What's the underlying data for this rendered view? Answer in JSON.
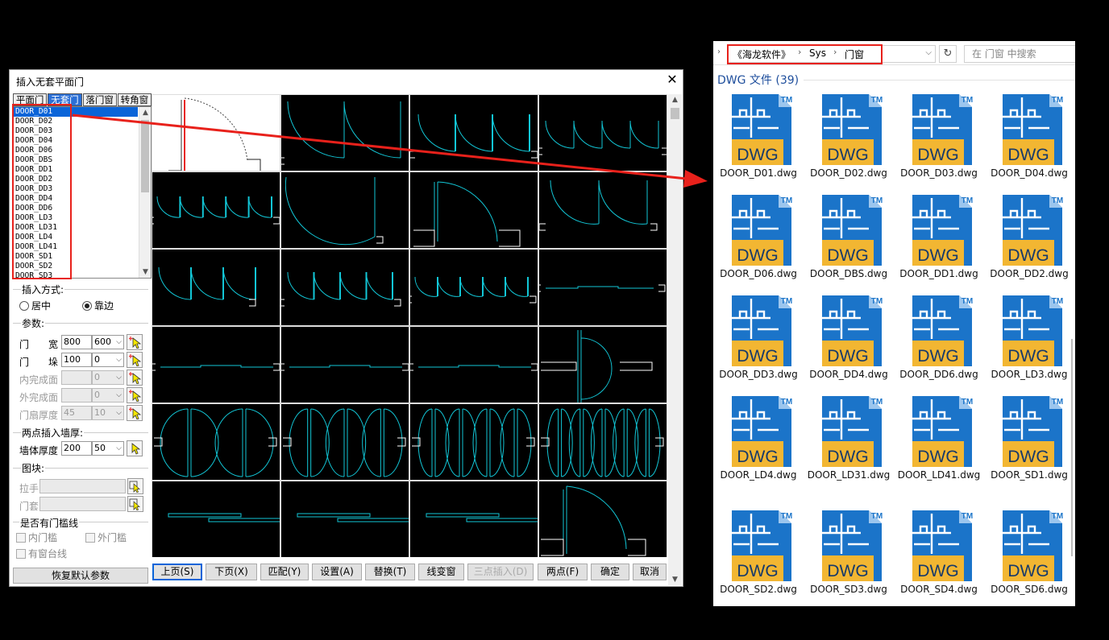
{
  "dialog": {
    "title": "插入无套平面门",
    "close_glyph": "✕",
    "tabs": [
      {
        "label": "平面门",
        "active": false
      },
      {
        "label": "无套门",
        "active": true
      },
      {
        "label": "落门窗",
        "active": false
      },
      {
        "label": "转角窗",
        "active": false
      }
    ],
    "door_list": [
      "DOOR_D01",
      "DOOR_D02",
      "DOOR_D03",
      "DOOR_D04",
      "DOOR_D06",
      "DOOR_DBS",
      "DOOR_DD1",
      "DOOR_DD2",
      "DOOR_DD3",
      "DOOR_DD4",
      "DOOR_DD6",
      "DOOR_LD3",
      "DOOR_LD31",
      "DOOR_LD4",
      "DOOR_LD41",
      "DOOR_SD1",
      "DOOR_SD2",
      "DOOR_SD3"
    ],
    "selected_door": "DOOR_D01",
    "insert_mode": {
      "title": "插入方式:",
      "options": [
        {
          "label": "居中",
          "checked": false
        },
        {
          "label": "靠边",
          "checked": true
        }
      ]
    },
    "params": {
      "title": "参数:",
      "rows": [
        {
          "label": "门　　宽",
          "value": "800",
          "combo": "600",
          "disabled": false
        },
        {
          "label": "门　　垛",
          "value": "100",
          "combo": "0",
          "disabled": false
        },
        {
          "label": "内完成面",
          "value": "",
          "combo": "0",
          "disabled": true
        },
        {
          "label": "外完成面",
          "value": "",
          "combo": "0",
          "disabled": true
        },
        {
          "label": "门扇厚度",
          "value": "45",
          "combo": "10",
          "disabled": true
        }
      ]
    },
    "two_point": {
      "title": "两点插入墙厚:",
      "label": "墙体厚度",
      "value": "200",
      "combo": "50"
    },
    "block": {
      "title": "图块:",
      "handle_label": "拉手",
      "cover_label": "门套"
    },
    "threshold": {
      "title": "是否有门槛线",
      "inner": "内门槛",
      "outer": "外门槛",
      "sill": "有窗台线"
    },
    "reset_button": "恢复默认参数",
    "buttons": [
      {
        "label": "上页(S)",
        "focus": true,
        "disabled": false
      },
      {
        "label": "下页(X)",
        "focus": false,
        "disabled": false
      },
      {
        "label": "匹配(Y)",
        "focus": false,
        "disabled": false
      },
      {
        "label": "设置(A)",
        "focus": false,
        "disabled": false
      },
      {
        "label": "替换(T)",
        "focus": false,
        "disabled": false
      },
      {
        "label": "线变窗",
        "focus": false,
        "disabled": false
      },
      {
        "label": "三点插入(D)",
        "focus": false,
        "disabled": true
      },
      {
        "label": "两点(F)",
        "focus": false,
        "disabled": false
      },
      {
        "label": "确定",
        "focus": false,
        "disabled": false
      },
      {
        "label": "取消",
        "focus": false,
        "disabled": false
      }
    ]
  },
  "explorer": {
    "breadcrumb": [
      "《海龙软件》",
      "Sys",
      "门窗"
    ],
    "search_placeholder": "在 门窗 中搜索",
    "group_header": "DWG 文件 (39)",
    "icon_text": "DWG",
    "icon_tm": "TM",
    "files": [
      "DOOR_D01.dwg",
      "DOOR_D02.dwg",
      "DOOR_D03.dwg",
      "DOOR_D04.dwg",
      "DOOR_D06.dwg",
      "DOOR_DBS.dwg",
      "DOOR_DD1.dwg",
      "DOOR_DD2.dwg",
      "DOOR_DD3.dwg",
      "DOOR_DD4.dwg",
      "DOOR_DD6.dwg",
      "DOOR_LD3.dwg",
      "DOOR_LD4.dwg",
      "DOOR_LD31.dwg",
      "DOOR_LD41.dwg",
      "DOOR_SD1.dwg",
      "DOOR_SD2.dwg",
      "DOOR_SD3.dwg",
      "DOOR_SD4.dwg",
      "DOOR_SD6.dwg"
    ]
  },
  "colors": {
    "accent": "#0a64d8",
    "highlight_red": "#e8211b",
    "cad_cyan": "#12c6d6",
    "dwg_blue": "#1b74c9",
    "dwg_yellow": "#f2b632"
  }
}
